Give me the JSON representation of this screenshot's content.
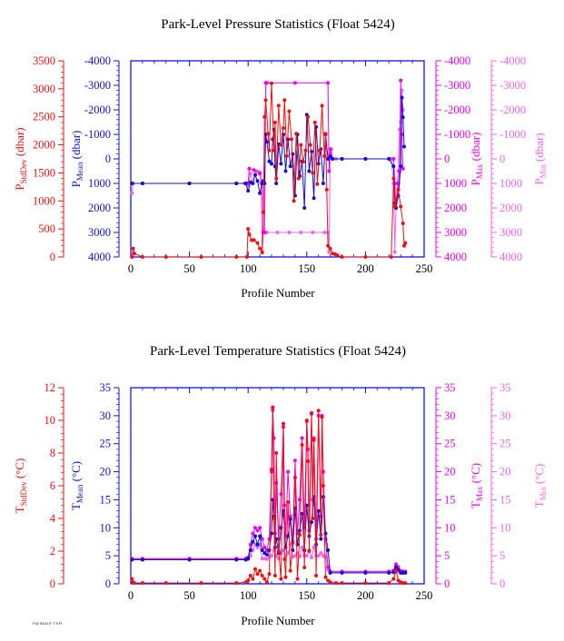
{
  "colors": {
    "stddev": "#ee1111",
    "mean": "#1111cc",
    "max": "#ee00ee",
    "min": "#ee66ee",
    "frame": "#0000ee",
    "text": "#000000"
  },
  "footer": "F42 5424.P, T 9 R",
  "chart_data": [
    {
      "type": "line",
      "title": "Park-Level Pressure Statistics (Float 5424)",
      "xlabel": "Profile Number",
      "xlim": [
        0,
        250
      ],
      "xticks": [
        0,
        50,
        100,
        150,
        200,
        250
      ],
      "axes": {
        "stddev": {
          "label_main": "P",
          "label_sub": "StdDev",
          "label_unit": " (dbar)",
          "lim": [
            0,
            3500
          ],
          "ticks": [
            0,
            500,
            1000,
            1500,
            2000,
            2500,
            3000,
            3500
          ]
        },
        "mean": {
          "label_main": "P",
          "label_sub": "Mean",
          "label_unit": " (dbar)",
          "lim": [
            4000,
            -4000
          ],
          "ticks": [
            4000,
            3000,
            2000,
            1000,
            0,
            -1000,
            -2000,
            -3000,
            -4000
          ]
        },
        "max": {
          "label_main": "P",
          "label_sub": "Max",
          "label_unit": " (dbar)",
          "lim": [
            4000,
            -4000
          ],
          "ticks": [
            4000,
            3000,
            2000,
            1000,
            0,
            -1000,
            -2000,
            -3000,
            -4000
          ]
        },
        "min": {
          "label_main": "P",
          "label_sub": "Min",
          "label_unit": " (dbar)",
          "lim": [
            4000,
            -4000
          ],
          "ticks": [
            4000,
            3000,
            2000,
            1000,
            0,
            -1000,
            -2000,
            -3000,
            -4000
          ]
        }
      },
      "series": [
        {
          "key": "stddev",
          "x": [
            1,
            2,
            3,
            10,
            30,
            60,
            90,
            99,
            100,
            101,
            103,
            105,
            108,
            110,
            112,
            113,
            114,
            115,
            117,
            118,
            120,
            122,
            123,
            124,
            126,
            128,
            130,
            131,
            133,
            135,
            137,
            139,
            141,
            143,
            145,
            147,
            149,
            151,
            153,
            155,
            157,
            159,
            161,
            163,
            165,
            166,
            167,
            168,
            170,
            172,
            174,
            176,
            180,
            200,
            222,
            224,
            225,
            226,
            228,
            230,
            232,
            233,
            234
          ],
          "values": [
            0,
            150,
            60,
            0,
            0,
            0,
            0,
            0,
            500,
            400,
            300,
            300,
            250,
            150,
            80,
            800,
            2500,
            2800,
            2200,
            1900,
            3100,
            1900,
            2400,
            1400,
            2700,
            2000,
            2300,
            2800,
            1800,
            2600,
            2100,
            1000,
            2200,
            1400,
            2000,
            1700,
            1900,
            2500,
            2000,
            1500,
            2400,
            1300,
            1900,
            2700,
            1800,
            2200,
            1200,
            200,
            150,
            60,
            50,
            30,
            0,
            0,
            0,
            1400,
            900,
            1000,
            1200,
            900,
            600,
            200,
            250
          ]
        },
        {
          "key": "mean",
          "x": [
            1,
            10,
            50,
            90,
            98,
            100,
            102,
            104,
            106,
            108,
            110,
            112,
            113,
            114,
            115,
            116,
            118,
            120,
            121,
            122,
            123,
            124,
            126,
            128,
            130,
            132,
            134,
            136,
            138,
            140,
            142,
            144,
            146,
            148,
            150,
            152,
            154,
            156,
            158,
            160,
            162,
            164,
            166,
            168,
            170,
            172,
            180,
            200,
            220,
            224,
            225,
            226,
            228,
            230,
            231,
            232,
            233
          ],
          "values": [
            1000,
            1000,
            1000,
            1000,
            1000,
            1300,
            950,
            1000,
            650,
            900,
            1400,
            1000,
            900,
            1000,
            -1000,
            -700,
            100,
            200,
            -800,
            -1200,
            300,
            1000,
            -600,
            200,
            -1000,
            500,
            -800,
            300,
            -200,
            1500,
            -1000,
            700,
            100,
            2000,
            -1800,
            500,
            -300,
            1600,
            -1300,
            200,
            -400,
            1000,
            -1000,
            0,
            -100,
            0,
            0,
            0,
            0,
            300,
            1800,
            2000,
            1500,
            300,
            -2500,
            -1700,
            -500
          ]
        },
        {
          "key": "max",
          "x": [
            1,
            10,
            50,
            90,
            98,
            100,
            101,
            105,
            110,
            112,
            113,
            114,
            115,
            116,
            140,
            168,
            169,
            170,
            172,
            180,
            200,
            220,
            224,
            225,
            226,
            228,
            229,
            230,
            231,
            232
          ],
          "values": [
            1000,
            1000,
            1000,
            1000,
            1000,
            1000,
            400,
            450,
            600,
            1000,
            3000,
            3000,
            -3100,
            -3100,
            -3100,
            -3100,
            500,
            -400,
            0,
            0,
            0,
            0,
            0,
            1000,
            2000,
            1000,
            500,
            -3200,
            -1000,
            400
          ]
        },
        {
          "key": "min",
          "x": [
            1,
            2,
            10,
            50,
            90,
            97,
            99,
            100,
            102,
            104,
            106,
            108,
            110,
            111,
            112,
            113,
            114,
            115,
            116,
            125,
            135,
            145,
            155,
            165,
            168,
            169,
            170,
            171,
            172,
            175,
            180,
            200,
            222,
            224,
            225,
            226,
            227,
            228,
            229,
            230,
            231,
            232
          ],
          "values": [
            1400,
            1000,
            1000,
            1000,
            1000,
            1000,
            1000,
            1100,
            600,
            1000,
            500,
            500,
            550,
            1000,
            3800,
            3000,
            3000,
            3000,
            3000,
            3000,
            3000,
            3000,
            3000,
            3000,
            3000,
            3800,
            -200,
            -400,
            0,
            0,
            0,
            0,
            0,
            1000,
            3800,
            2000,
            1000,
            500,
            -1200,
            -1500,
            -2800,
            -2000
          ]
        }
      ]
    },
    {
      "type": "line",
      "title": "Park-Level Temperature Statistics (Float 5424)",
      "xlabel": "Profile Number",
      "xlim": [
        0,
        250
      ],
      "xticks": [
        0,
        50,
        100,
        150,
        200,
        250
      ],
      "axes": {
        "stddev": {
          "label_main": "T",
          "label_sub": "StdDev",
          "label_unit": " (°C)",
          "lim": [
            0,
            12
          ],
          "ticks": [
            0,
            2,
            4,
            6,
            8,
            10,
            12
          ]
        },
        "mean": {
          "label_main": "T",
          "label_sub": "Mean",
          "label_unit": " (°C)",
          "lim": [
            0,
            35
          ],
          "ticks": [
            0,
            5,
            10,
            15,
            20,
            25,
            30,
            35
          ]
        },
        "max": {
          "label_main": "T",
          "label_sub": "Max",
          "label_unit": " (°C)",
          "lim": [
            0,
            35
          ],
          "ticks": [
            0,
            5,
            10,
            15,
            20,
            25,
            30,
            35
          ]
        },
        "min": {
          "label_main": "T",
          "label_sub": "Min",
          "label_unit": " (°C)",
          "lim": [
            0,
            35
          ],
          "ticks": [
            0,
            5,
            10,
            15,
            20,
            25,
            30,
            35
          ]
        }
      },
      "series": [
        {
          "key": "stddev",
          "x": [
            1,
            2,
            3,
            10,
            30,
            60,
            90,
            98,
            100,
            102,
            104,
            106,
            108,
            110,
            112,
            114,
            116,
            118,
            120,
            121,
            122,
            123,
            124,
            126,
            128,
            130,
            131,
            132,
            134,
            136,
            138,
            140,
            142,
            144,
            146,
            148,
            150,
            151,
            152,
            154,
            155,
            156,
            158,
            160,
            162,
            163,
            164,
            166,
            168,
            170,
            175,
            180,
            200,
            220,
            224,
            226,
            228,
            230,
            232,
            234
          ],
          "values": [
            0.3,
            0.1,
            0.05,
            0.05,
            0.05,
            0.05,
            0.05,
            0.1,
            0.2,
            0.5,
            0.3,
            0.9,
            0.6,
            0.8,
            0.5,
            0.3,
            0.1,
            0.6,
            7.0,
            10.8,
            4.0,
            0.5,
            8.0,
            2.0,
            0.3,
            9.8,
            1.5,
            0.4,
            5.0,
            0.8,
            2.5,
            6.5,
            0.3,
            3.0,
            8.5,
            1.0,
            10.0,
            7.5,
            2.0,
            10.4,
            4.0,
            8.8,
            0.5,
            10.6,
            3.0,
            10.2,
            6.0,
            0.4,
            0.2,
            0.1,
            0.05,
            0.05,
            0.05,
            0.05,
            0.3,
            0.8,
            0.2,
            0.1,
            0.05,
            0.05
          ]
        },
        {
          "key": "mean",
          "x": [
            1,
            10,
            50,
            90,
            98,
            100,
            102,
            104,
            106,
            108,
            110,
            112,
            114,
            116,
            118,
            120,
            121,
            122,
            123,
            124,
            126,
            128,
            130,
            132,
            134,
            136,
            138,
            140,
            142,
            144,
            146,
            148,
            150,
            152,
            154,
            156,
            158,
            160,
            162,
            164,
            166,
            168,
            170,
            180,
            200,
            220,
            224,
            226,
            228,
            230,
            232,
            234
          ],
          "values": [
            4.3,
            4.3,
            4.3,
            4.3,
            4.3,
            4.5,
            6.0,
            7.5,
            8.5,
            7.0,
            8.5,
            6.0,
            5.5,
            5.2,
            6.0,
            9.0,
            15.0,
            12.0,
            6.5,
            8.0,
            5.5,
            10.0,
            13.0,
            6.5,
            8.5,
            11.5,
            6.0,
            13.5,
            7.0,
            9.5,
            12.5,
            6.0,
            14.0,
            8.5,
            11.0,
            15.5,
            7.0,
            13.0,
            8.0,
            15.5,
            9.0,
            6.0,
            2.0,
            2.0,
            2.0,
            2.0,
            2.1,
            3.0,
            2.5,
            2.0,
            2.0,
            2.0
          ]
        },
        {
          "key": "max",
          "x": [
            1,
            10,
            50,
            90,
            98,
            100,
            102,
            104,
            106,
            108,
            110,
            112,
            114,
            116,
            118,
            120,
            121,
            122,
            123,
            124,
            126,
            128,
            130,
            131,
            132,
            134,
            136,
            138,
            140,
            142,
            144,
            146,
            148,
            150,
            151,
            152,
            154,
            155,
            156,
            158,
            160,
            162,
            163,
            164,
            166,
            168,
            170,
            180,
            200,
            220,
            224,
            226,
            228,
            230,
            232,
            234
          ],
          "values": [
            4.5,
            4.5,
            4.5,
            4.5,
            4.5,
            4.7,
            7.0,
            9.0,
            10.0,
            9.5,
            10.0,
            8.0,
            6.5,
            6.0,
            8.0,
            20.0,
            31.0,
            26.0,
            9.0,
            18.0,
            8.0,
            16.0,
            28.0,
            14.0,
            8.5,
            20.0,
            12.0,
            7.5,
            22.0,
            9.0,
            15.0,
            26.0,
            10.0,
            29.0,
            24.0,
            9.5,
            30.5,
            15.0,
            26.0,
            8.0,
            30.0,
            12.0,
            30.0,
            20.0,
            8.0,
            3.0,
            2.2,
            2.2,
            2.2,
            2.2,
            2.4,
            3.5,
            3.0,
            2.3,
            2.2,
            2.2
          ]
        },
        {
          "key": "min",
          "x": [
            1,
            10,
            50,
            90,
            98,
            100,
            102,
            104,
            106,
            108,
            110,
            112,
            114,
            116,
            118,
            120,
            122,
            124,
            126,
            128,
            130,
            132,
            134,
            136,
            138,
            140,
            142,
            144,
            146,
            148,
            150,
            152,
            154,
            156,
            158,
            160,
            162,
            164,
            166,
            168,
            170,
            180,
            200,
            220,
            224,
            226,
            228,
            230,
            232,
            234
          ],
          "values": [
            4.4,
            4.4,
            4.4,
            4.4,
            4.4,
            4.4,
            5.0,
            6.0,
            7.0,
            6.5,
            7.0,
            4.5,
            4.5,
            4.4,
            4.8,
            5.0,
            6.0,
            5.0,
            4.5,
            5.5,
            6.0,
            5.0,
            5.5,
            7.0,
            4.8,
            5.0,
            5.5,
            4.9,
            6.5,
            5.0,
            5.0,
            6.0,
            4.7,
            6.5,
            5.0,
            5.0,
            5.5,
            5.0,
            4.8,
            2.5,
            1.9,
            1.9,
            1.9,
            1.9,
            2.0,
            2.5,
            2.2,
            1.9,
            1.9,
            1.9
          ]
        }
      ]
    }
  ]
}
